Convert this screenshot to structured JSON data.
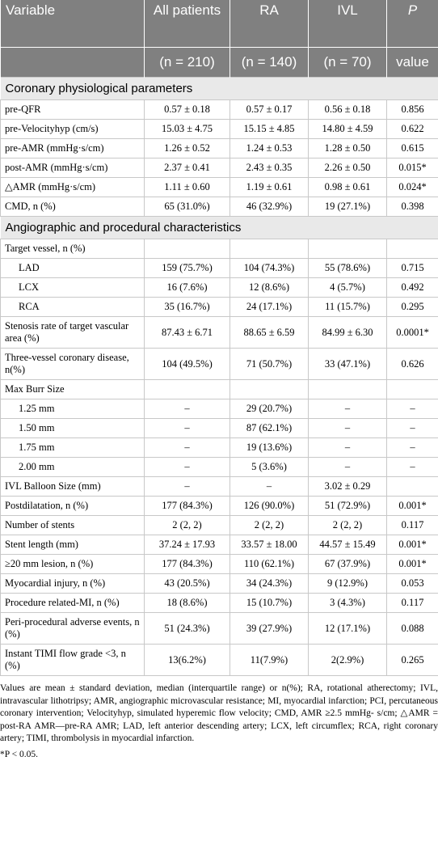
{
  "header": {
    "row1": [
      "Variable",
      "All patients",
      "RA",
      "IVL",
      "P"
    ],
    "row2": [
      "(n = 210)",
      "(n = 140)",
      "(n = 70)",
      "value"
    ]
  },
  "sections": [
    {
      "title": "Coronary physiological parameters",
      "rows": [
        {
          "label": "pre-QFR",
          "cells": [
            "0.57 ± 0.18",
            "0.57 ± 0.17",
            "0.56 ± 0.18",
            "0.856"
          ]
        },
        {
          "label": "pre-Velocityhyp (cm/s)",
          "cells": [
            "15.03 ± 4.75",
            "15.15 ± 4.85",
            "14.80 ± 4.59",
            "0.622"
          ]
        },
        {
          "label": "pre-AMR (mmHg·s/cm)",
          "cells": [
            "1.26 ± 0.52",
            "1.24 ± 0.53",
            "1.28 ± 0.50",
            "0.615"
          ]
        },
        {
          "label": "post-AMR (mmHg·s/cm)",
          "cells": [
            "2.37 ± 0.41",
            "2.43 ± 0.35",
            "2.26 ± 0.50",
            "0.015*"
          ]
        },
        {
          "label": "△AMR (mmHg·s/cm)",
          "cells": [
            "1.11 ± 0.60",
            "1.19 ± 0.61",
            "0.98 ± 0.61",
            "0.024*"
          ]
        },
        {
          "label": "CMD, n (%)",
          "cells": [
            "65 (31.0%)",
            "46 (32.9%)",
            "19 (27.1%)",
            "0.398"
          ]
        }
      ]
    },
    {
      "title": "Angiographic and procedural characteristics",
      "rows": [
        {
          "label": "Target vessel, n (%)"
        },
        {
          "label": "LAD",
          "cells": [
            "159 (75.7%)",
            "104 (74.3%)",
            "55 (78.6%)",
            "0.715"
          ]
        },
        {
          "label": "LCX",
          "cells": [
            "16 (7.6%)",
            "12 (8.6%)",
            "4 (5.7%)",
            "0.492"
          ]
        },
        {
          "label": "RCA",
          "cells": [
            "35 (16.7%)",
            "24 (17.1%)",
            "11 (15.7%)",
            "0.295"
          ]
        },
        {
          "label": "Stenosis rate of target vascular area (%)",
          "cells": [
            "87.43 ± 6.71",
            "88.65 ± 6.59",
            "84.99 ± 6.30",
            "0.0001*"
          ]
        },
        {
          "label": "Three-vessel coronary disease, n(%)",
          "cells": [
            "104 (49.5%)",
            "71 (50.7%)",
            "33 (47.1%)",
            "0.626"
          ]
        },
        {
          "label": "Max Burr Size"
        },
        {
          "label": "1.25 mm",
          "cells": [
            "–",
            "29 (20.7%)",
            "–",
            "–"
          ]
        },
        {
          "label": "1.50 mm",
          "cells": [
            "–",
            "87 (62.1%)",
            "–",
            "–"
          ]
        },
        {
          "label": "1.75 mm",
          "cells": [
            "–",
            "19 (13.6%)",
            "–",
            "–"
          ]
        },
        {
          "label": "2.00 mm",
          "cells": [
            "–",
            "5 (3.6%)",
            "–",
            "–"
          ]
        },
        {
          "label": "IVL Balloon Size (mm)",
          "cells": [
            "–",
            "–",
            "3.02 ± 0.29"
          ]
        },
        {
          "label": "Postdilatation, n (%)",
          "cells": [
            "177 (84.3%)",
            "126 (90.0%)",
            "51 (72.9%)",
            "0.001*"
          ]
        },
        {
          "label": "Number of stents",
          "cells": [
            "2 (2, 2)",
            "2 (2, 2)",
            "2 (2, 2)",
            "0.117"
          ]
        },
        {
          "label": "Stent length (mm)",
          "cells": [
            "37.24 ± 17.93",
            "33.57 ± 18.00",
            "44.57 ± 15.49",
            "0.001*"
          ]
        },
        {
          "label": "≥20 mm lesion, n (%)",
          "cells": [
            "177 (84.3%)",
            "110 (62.1%)",
            "67 (37.9%)",
            "0.001*"
          ]
        },
        {
          "label": "Myocardial injury, n (%)",
          "cells": [
            "43 (20.5%)",
            "34 (24.3%)",
            "9 (12.9%)",
            "0.053"
          ]
        },
        {
          "label": "Procedure related-MI, n (%)",
          "cells": [
            "18 (8.6%)",
            "15 (10.7%)",
            "3 (4.3%)",
            "0.117"
          ]
        },
        {
          "label": "Peri-procedural adverse events, n (%)",
          "cells": [
            "51 (24.3%)",
            "39 (27.9%)",
            "12 (17.1%)",
            "0.088"
          ]
        },
        {
          "label": "Instant TIMI flow grade <3, n (%)",
          "cells": [
            "13(6.2%)",
            "11(7.9%)",
            "2(2.9%)",
            "0.265"
          ]
        }
      ]
    }
  ],
  "footnotes": [
    "Values are mean ± standard deviation, median (interquartile range) or n(%); RA, rotational atherectomy; IVL, intravascular lithotripsy; AMR, angiographic microvascular resistance; MI, myocardial infarction; PCI, percutaneous coronary intervention; Velocityhyp, simulated hyperemic flow velocity; CMD, AMR ≥2.5 mmHg- s/cm; △AMR = post-RA AMR—pre-RA AMR; LAD, left anterior descending artery; LCX, left circumflex; RCA, right coronary artery; TIMI, thrombolysis in myocardial infarction.",
    "*P < 0.05."
  ]
}
